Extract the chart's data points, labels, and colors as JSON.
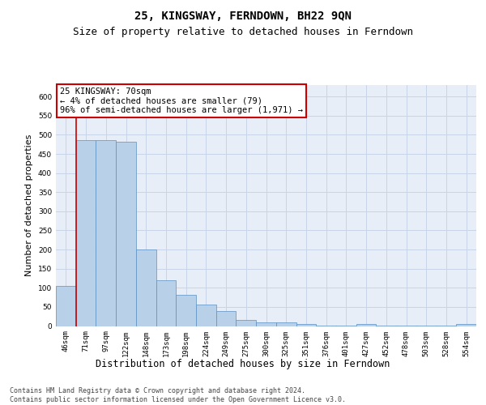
{
  "title1": "25, KINGSWAY, FERNDOWN, BH22 9QN",
  "title2": "Size of property relative to detached houses in Ferndown",
  "xlabel": "Distribution of detached houses by size in Ferndown",
  "ylabel": "Number of detached properties",
  "categories": [
    "46sqm",
    "71sqm",
    "97sqm",
    "122sqm",
    "148sqm",
    "173sqm",
    "198sqm",
    "224sqm",
    "249sqm",
    "275sqm",
    "300sqm",
    "325sqm",
    "351sqm",
    "376sqm",
    "401sqm",
    "427sqm",
    "452sqm",
    "478sqm",
    "503sqm",
    "528sqm",
    "554sqm"
  ],
  "values": [
    105,
    487,
    487,
    482,
    200,
    120,
    82,
    57,
    40,
    15,
    10,
    10,
    5,
    2,
    1,
    6,
    1,
    1,
    1,
    1,
    6
  ],
  "bar_color": "#b8d0e8",
  "bar_edge_color": "#5a8fc0",
  "highlight_line_color": "#cc0000",
  "highlight_index": 1,
  "annotation_text": "25 KINGSWAY: 70sqm\n← 4% of detached houses are smaller (79)\n96% of semi-detached houses are larger (1,971) →",
  "annotation_box_color": "#ffffff",
  "annotation_box_edge": "#cc0000",
  "ylim": [
    0,
    630
  ],
  "yticks": [
    0,
    50,
    100,
    150,
    200,
    250,
    300,
    350,
    400,
    450,
    500,
    550,
    600
  ],
  "grid_color": "#c8d4e8",
  "bg_color": "#e8eef8",
  "footer_text": "Contains HM Land Registry data © Crown copyright and database right 2024.\nContains public sector information licensed under the Open Government Licence v3.0.",
  "title1_fontsize": 10,
  "title2_fontsize": 9,
  "xlabel_fontsize": 8.5,
  "ylabel_fontsize": 8,
  "tick_fontsize": 6.5,
  "annotation_fontsize": 7.5,
  "footer_fontsize": 6
}
